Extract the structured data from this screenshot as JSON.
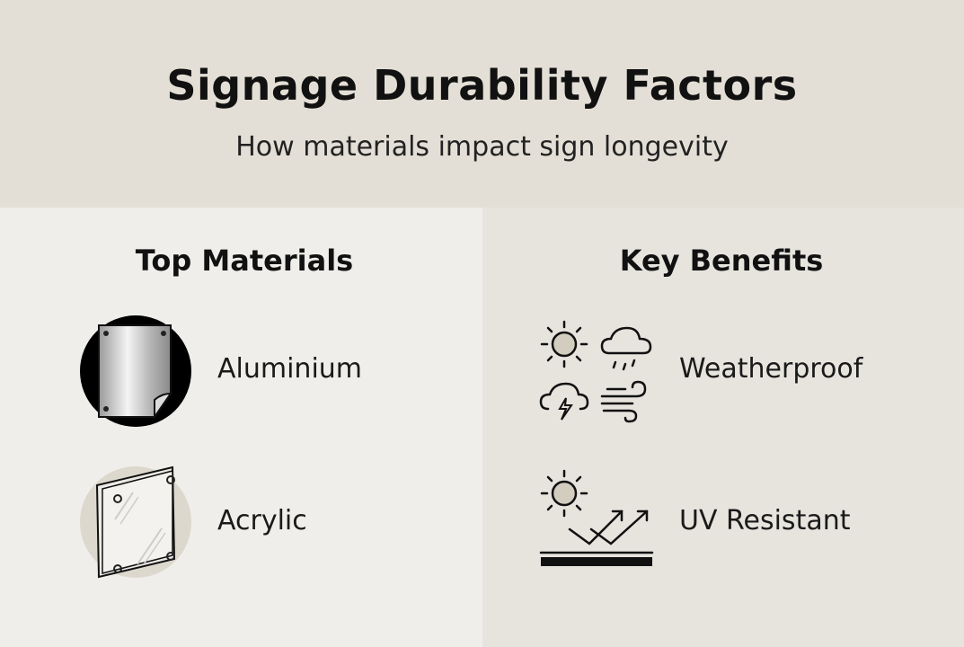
{
  "header": {
    "title": "Signage Durability Factors",
    "subtitle": "How materials impact sign longevity"
  },
  "materials": {
    "heading": "Top Materials",
    "items": [
      {
        "label": "Aluminium",
        "icon": "aluminium-sheet-icon"
      },
      {
        "label": "Acrylic",
        "icon": "acrylic-panel-icon"
      }
    ]
  },
  "benefits": {
    "heading": "Key Benefits",
    "items": [
      {
        "label": "Weatherproof",
        "icon": "weather-icons"
      },
      {
        "label": "UV Resistant",
        "icon": "uv-reflection-icon"
      }
    ]
  },
  "colors": {
    "header_bg": "#e4dfd6",
    "left_bg": "#efeeea",
    "right_bg": "#e7e4de",
    "sun_fill": "#d3cdbf"
  }
}
